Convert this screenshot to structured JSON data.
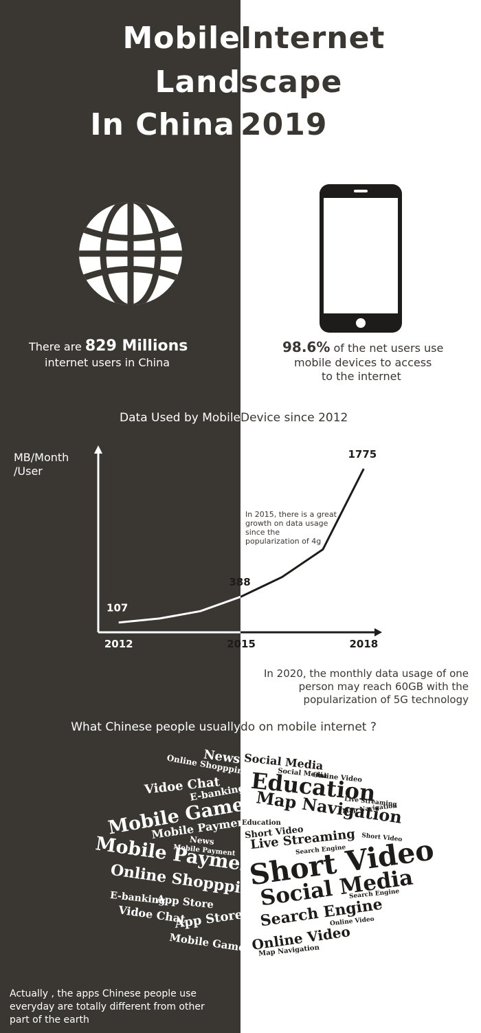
{
  "title": {
    "line1_left": "Mobile",
    "line1_right": "Internet",
    "line2_left": "Land",
    "line2_right": "scape",
    "line3_left": "In China",
    "line3_right": "2019"
  },
  "stats": {
    "left": {
      "prefix": "There are ",
      "highlight": "829 Millions",
      "line2": "internet users in China"
    },
    "right": {
      "highlight": "98.6%",
      "suffix": " of the net users use",
      "line2": "mobile devices to access",
      "line3": "to the internet"
    }
  },
  "chart_section": {
    "title_left": "Data Used by Mobile ",
    "title_right": "Device since 2012"
  },
  "chart_data": {
    "type": "line",
    "title": "Data Used by Mobile Device since 2012",
    "ylabel": "MB/Month /User",
    "ylabel_line1": "MB/Month",
    "ylabel_line2": "/User",
    "xlabel": "",
    "x": [
      2012,
      2013,
      2014,
      2015,
      2016,
      2017,
      2018
    ],
    "values": [
      107,
      150,
      230,
      388,
      600,
      900,
      1775
    ],
    "xlim": [
      2011.5,
      2018.6
    ],
    "ylim": [
      0,
      2000
    ],
    "x_ticks": [
      "2012",
      "2015",
      "2018"
    ],
    "point_labels": [
      {
        "x": 2012,
        "y": 107,
        "label": "107"
      },
      {
        "x": 2015,
        "y": 388,
        "label": "388"
      },
      {
        "x": 2018,
        "y": 1775,
        "label": "1775"
      }
    ],
    "annotation": {
      "line1": "In 2015, there is a great",
      "line2": "growth on data usage",
      "line3": "since the",
      "line4": "popularization of 4g"
    }
  },
  "note_2020": {
    "line1": "In 2020,  the monthly data usage of one",
    "line2": "person may reach 60GB with the",
    "line3": "popularization of 5G technology"
  },
  "question": {
    "left": "What Chinese people usually ",
    "right": "do on mobile internet ?"
  },
  "word_cloud_left": {
    "w1": "News",
    "w2": "Online Shoppping",
    "w3": "Vidoe Chat",
    "w4": "E-banking",
    "w5": "Mobile Games",
    "w6": "Mobile Payment",
    "w7": "News",
    "w8": "Mobile Payment",
    "w9": "Mobile Payment",
    "w10": "Online Shoppping",
    "w11": "E-banking",
    "w12": "App Store",
    "w13": "Vidoe Chat",
    "w14": "App Store",
    "w15": "Mobile Games"
  },
  "word_cloud_right": {
    "w1": "Social Media",
    "w2": "Social Media",
    "w3": "Online Video",
    "w4": "Education",
    "w5": "Map Navigation",
    "w6": "Live Streaming",
    "w7": "Map Navigation",
    "w8": "Education",
    "w9": "Short Video",
    "w10": "Short Video",
    "w11": "Live Streaming",
    "w12": "Search Engine",
    "w13": "Short Video",
    "w14": "Social Media",
    "w15": "Search Engine",
    "w16": "Search Engine",
    "w17": "Online Video",
    "w18": "Online Video",
    "w19": "Map Navigation"
  },
  "footer": {
    "line1": "Actually , the apps Chinese people use",
    "line2": "everyday are totally different from  other",
    "line3": "part of the earth"
  },
  "colors": {
    "dark": "#3a3631",
    "light": "#ffffff"
  }
}
